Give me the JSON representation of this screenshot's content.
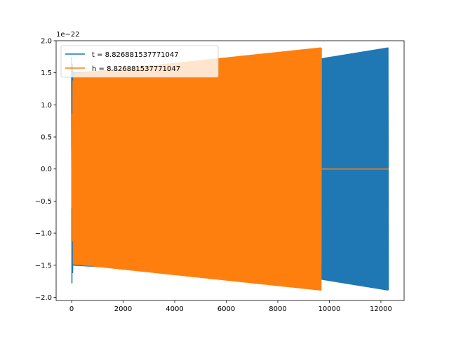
{
  "chart_data": {
    "type": "line",
    "title": "",
    "xlabel": "",
    "ylabel": "",
    "offset_label": "1e−22",
    "xlim": [
      -600,
      12900
    ],
    "ylim": [
      -2.05,
      2.0
    ],
    "x_ticks": [
      0,
      2000,
      4000,
      6000,
      8000,
      10000,
      12000
    ],
    "x_tick_labels": [
      "0",
      "2000",
      "4000",
      "6000",
      "8000",
      "10000",
      "12000"
    ],
    "y_ticks": [
      -2.0,
      -1.5,
      -1.0,
      -0.5,
      0.0,
      0.5,
      1.0,
      1.5,
      2.0
    ],
    "y_tick_labels": [
      "−2.0",
      "−1.5",
      "−1.0",
      "−0.5",
      "0.0",
      "0.5",
      "1.0",
      "1.5",
      "2.0"
    ],
    "grid": false,
    "legend_placement": "upper-left",
    "series": [
      {
        "name": "t = 8.826881537771047",
        "color": "#1f77b4",
        "x_range": [
          0,
          12300
        ],
        "envelope": {
          "x": [
            0,
            60,
            9700,
            12300
          ],
          "upper": [
            1.75,
            1.5,
            1.72,
            1.89
          ],
          "lower": [
            -1.86,
            -1.5,
            -1.72,
            -1.89
          ]
        }
      },
      {
        "name": "h = 8.826881537771047",
        "color": "#ff7f0e",
        "x_range": [
          0,
          12300
        ],
        "envelope": {
          "x": [
            0,
            60,
            9700
          ],
          "upper": [
            0.35,
            1.48,
            1.89
          ],
          "lower": [
            -0.35,
            -1.48,
            -1.89
          ]
        },
        "zero_after": 9700
      }
    ]
  }
}
